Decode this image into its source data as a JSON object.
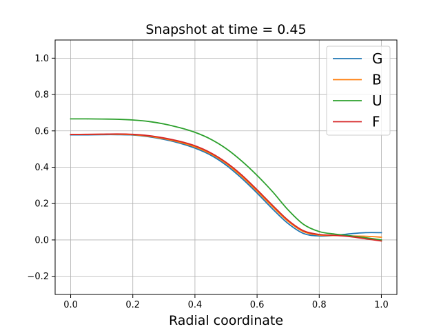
{
  "chart_data": {
    "type": "line",
    "title": "Snapshot at time = 0.45",
    "xlabel": "Radial coordinate",
    "ylabel": "",
    "xlim": [
      -0.05,
      1.05
    ],
    "ylim": [
      -0.3,
      1.1
    ],
    "grid": true,
    "legend_position": "top-right",
    "xticks": [
      0.0,
      0.2,
      0.4,
      0.6,
      0.8,
      1.0
    ],
    "xtick_labels": [
      "0.0",
      "0.2",
      "0.4",
      "0.6",
      "0.8",
      "1.0"
    ],
    "yticks": [
      -0.2,
      0.0,
      0.2,
      0.4,
      0.6,
      0.8,
      1.0
    ],
    "ytick_labels": [
      "−0.2",
      "0.0",
      "0.2",
      "0.4",
      "0.6",
      "0.8",
      "1.0"
    ],
    "x": [
      0.0,
      0.05,
      0.1,
      0.15,
      0.2,
      0.25,
      0.3,
      0.35,
      0.4,
      0.45,
      0.5,
      0.55,
      0.6,
      0.65,
      0.7,
      0.75,
      0.8,
      0.85,
      0.9,
      0.95,
      1.0
    ],
    "series": [
      {
        "name": "G",
        "color": "#1f77b4",
        "values": [
          0.578,
          0.578,
          0.579,
          0.579,
          0.577,
          0.568,
          0.553,
          0.533,
          0.505,
          0.467,
          0.412,
          0.34,
          0.258,
          0.17,
          0.09,
          0.035,
          0.022,
          0.025,
          0.034,
          0.04,
          0.04
        ]
      },
      {
        "name": "B",
        "color": "#ff7f0e",
        "values": [
          0.58,
          0.58,
          0.581,
          0.581,
          0.579,
          0.571,
          0.557,
          0.538,
          0.512,
          0.474,
          0.421,
          0.35,
          0.268,
          0.182,
          0.102,
          0.045,
          0.027,
          0.024,
          0.022,
          0.02,
          0.015
        ]
      },
      {
        "name": "U",
        "color": "#2ca02c",
        "values": [
          0.666,
          0.666,
          0.665,
          0.664,
          0.66,
          0.652,
          0.638,
          0.618,
          0.592,
          0.555,
          0.503,
          0.435,
          0.355,
          0.265,
          0.165,
          0.085,
          0.046,
          0.032,
          0.023,
          0.012,
          0.0
        ]
      },
      {
        "name": "F",
        "color": "#d62728",
        "values": [
          0.58,
          0.581,
          0.582,
          0.583,
          0.581,
          0.574,
          0.561,
          0.543,
          0.518,
          0.48,
          0.427,
          0.358,
          0.276,
          0.19,
          0.108,
          0.05,
          0.03,
          0.025,
          0.018,
          0.006,
          -0.006
        ]
      }
    ]
  }
}
